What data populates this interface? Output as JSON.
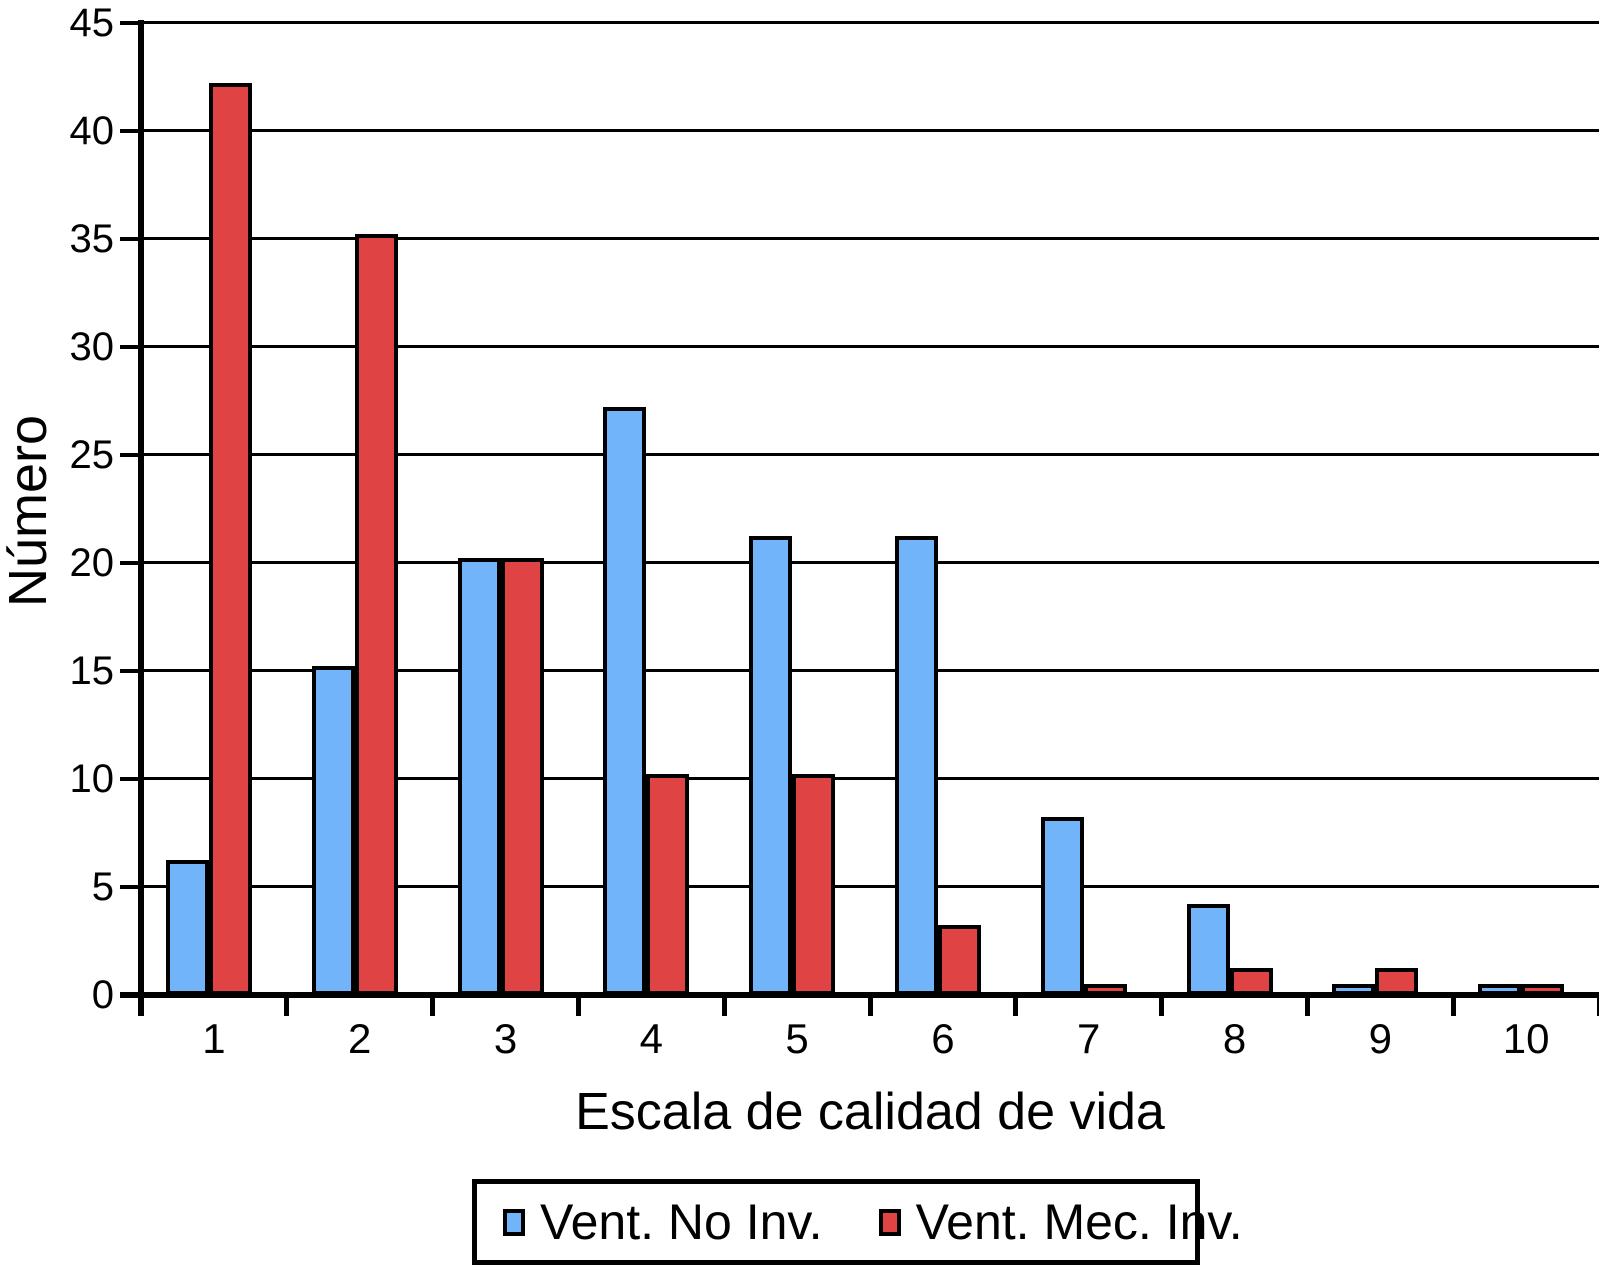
{
  "chart_data": {
    "type": "bar",
    "categories": [
      "1",
      "2",
      "3",
      "4",
      "5",
      "6",
      "7",
      "8",
      "9",
      "10"
    ],
    "series": [
      {
        "name": "Vent. No Inv.",
        "color": "#72B4FA",
        "values": [
          6,
          15,
          20,
          27,
          21,
          21,
          8,
          4,
          0.3,
          0.3
        ]
      },
      {
        "name": "Vent. Mec. Inv.",
        "color": "#E04343",
        "values": [
          42,
          35,
          20,
          10,
          10,
          3,
          0.3,
          1,
          1,
          0.3
        ]
      }
    ],
    "xlabel": "Escala de calidad de vida",
    "ylabel": "Número",
    "ylim": [
      0,
      45
    ],
    "ytick_step": 5,
    "yticks": [
      "0",
      "5",
      "10",
      "15",
      "20",
      "25",
      "30",
      "35",
      "40",
      "45"
    ],
    "grid": true,
    "legend_position": "bottom",
    "axis_color": "#000000",
    "background_color": "#FFFFFF"
  }
}
